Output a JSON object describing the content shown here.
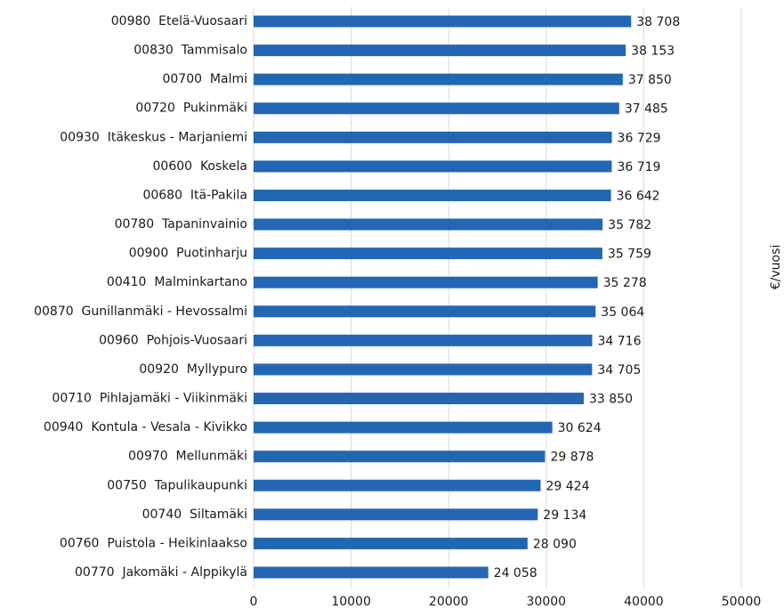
{
  "chart_data": {
    "type": "barh",
    "categories": [
      "00980  Etelä-Vuosaari",
      "00830  Tammisalo",
      "00700  Malmi",
      "00720  Pukinmäki",
      "00930  Itäkeskus - Marjaniemi",
      "00600  Koskela",
      "00680  Itä-Pakila",
      "00780  Tapaninvainio",
      "00900  Puotinharju",
      "00410  Malminkartano",
      "00870  Gunillanmäki - Hevossalmi",
      "00960  Pohjois-Vuosaari",
      "00920  Myllypuro",
      "00710  Pihlajamäki - Viikinmäki",
      "00940  Kontula - Vesala - Kivikko",
      "00970  Mellunmäki",
      "00750  Tapulikaupunki",
      "00740  Siltamäki",
      "00760  Puistola - Heikinlaakso",
      "00770  Jakomäki - Alppikylä"
    ],
    "values": [
      38708,
      38153,
      37850,
      37485,
      36729,
      36719,
      36642,
      35782,
      35759,
      35278,
      35064,
      34716,
      34705,
      33850,
      30624,
      29878,
      29424,
      29134,
      28090,
      24058
    ],
    "value_labels": [
      "38 708",
      "38 153",
      "37 850",
      "37 485",
      "36 729",
      "36 719",
      "36 642",
      "35 782",
      "35 759",
      "35 278",
      "35 064",
      "34 716",
      "34 705",
      "33 850",
      "30 624",
      "29 878",
      "29 424",
      "29 134",
      "28 090",
      "24 058"
    ],
    "color": "#2367b4",
    "xlabel": "€/vuosi",
    "xlim": [
      0,
      50000
    ],
    "xticks": [
      0,
      10000,
      20000,
      30000,
      40000,
      50000
    ],
    "grid": true
  }
}
